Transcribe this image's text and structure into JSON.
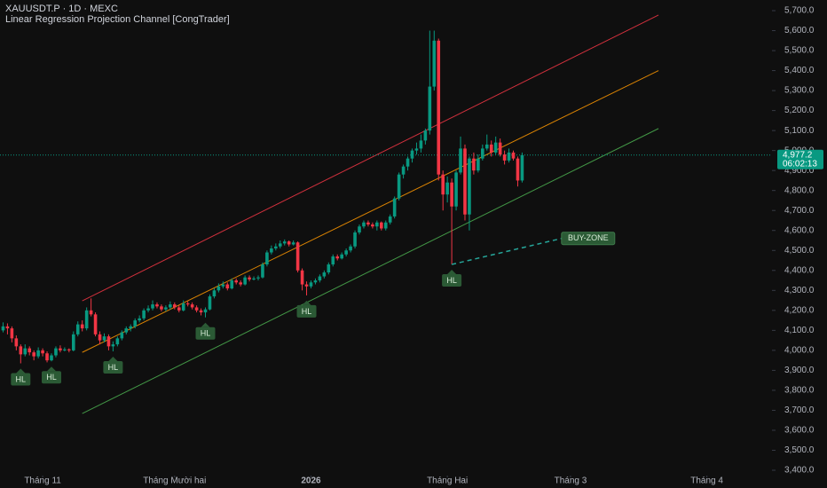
{
  "chart_data": {
    "type": "candlestick",
    "title": "XAUUSDT.P · 1D · MEXC",
    "subtitle": "Linear Regression Projection Channel [CongTrader]",
    "up_color": "#089981",
    "down_color": "#f23645",
    "xlim": [
      -9.7,
      165.8
    ],
    "ylim": [
      3400,
      5700
    ],
    "xticks": [
      {
        "value": 0,
        "label": "Tháng 11"
      },
      {
        "value": 30,
        "label": "Tháng Mười hai"
      },
      {
        "value": 61,
        "label": "2026"
      },
      {
        "value": 92,
        "label": "Tháng Hai"
      },
      {
        "value": 120,
        "label": "Tháng 3"
      },
      {
        "value": 151,
        "label": "Tháng 4"
      }
    ],
    "yticks": [
      {
        "value": 3400,
        "label": "3,400.0"
      },
      {
        "value": 3500,
        "label": "3,500.0"
      },
      {
        "value": 3600,
        "label": "3,600.0"
      },
      {
        "value": 3700,
        "label": "3,700.0"
      },
      {
        "value": 3800,
        "label": "3,800.0"
      },
      {
        "value": 3900,
        "label": "3,900.0"
      },
      {
        "value": 4000,
        "label": "4,000.0"
      },
      {
        "value": 4100,
        "label": "4,100.0"
      },
      {
        "value": 4200,
        "label": "4,200.0"
      },
      {
        "value": 4300,
        "label": "4,300.0"
      },
      {
        "value": 4400,
        "label": "4,400.0"
      },
      {
        "value": 4500,
        "label": "4,500.0"
      },
      {
        "value": 4600,
        "label": "4,600.0"
      },
      {
        "value": 4700,
        "label": "4,700.0"
      },
      {
        "value": 4800,
        "label": "4,800.0"
      },
      {
        "value": 4900,
        "label": "4,900.0"
      },
      {
        "value": 5000,
        "label": "5,000.0"
      },
      {
        "value": 5100,
        "label": "5,100.0"
      },
      {
        "value": 5200,
        "label": "5,200.0"
      },
      {
        "value": 5300,
        "label": "5,300.0"
      },
      {
        "value": 5400,
        "label": "5,400.0"
      },
      {
        "value": 5500,
        "label": "5,500.0"
      },
      {
        "value": 5600,
        "label": "5,600.0"
      },
      {
        "value": 5700,
        "label": "5,700.0"
      }
    ],
    "grid": false,
    "ohlc": [
      [
        -9,
        4100,
        4140,
        4090,
        4120
      ],
      [
        -8,
        4120,
        4135,
        4080,
        4110
      ],
      [
        -7,
        4110,
        4120,
        4040,
        4060
      ],
      [
        -6,
        4060,
        4075,
        4000,
        4020
      ],
      [
        -5,
        4020,
        4030,
        3935,
        3980
      ],
      [
        -4,
        3980,
        4030,
        3970,
        4010
      ],
      [
        -3,
        4010,
        4020,
        3975,
        3990
      ],
      [
        -2,
        3990,
        4000,
        3950,
        3970
      ],
      [
        -1,
        3970,
        4015,
        3960,
        4000
      ],
      [
        0,
        4000,
        4010,
        3970,
        3985
      ],
      [
        1,
        3985,
        3995,
        3940,
        3950
      ],
      [
        2,
        3950,
        3985,
        3945,
        3975
      ],
      [
        3,
        3975,
        4020,
        3965,
        4010
      ],
      [
        4,
        4010,
        4025,
        3990,
        4000
      ],
      [
        5,
        4000,
        4015,
        3995,
        4005
      ],
      [
        6,
        4005,
        4010,
        3990,
        4000
      ],
      [
        7,
        4000,
        4095,
        3995,
        4080
      ],
      [
        8,
        4080,
        4145,
        4070,
        4130
      ],
      [
        9,
        4130,
        4150,
        4095,
        4110
      ],
      [
        10,
        4110,
        4215,
        4100,
        4200
      ],
      [
        11,
        4200,
        4260,
        4170,
        4180
      ],
      [
        12,
        4180,
        4190,
        4070,
        4080
      ],
      [
        13,
        4080,
        4095,
        4030,
        4050
      ],
      [
        14,
        4050,
        4085,
        4040,
        4070
      ],
      [
        15,
        4070,
        4080,
        4000,
        4020
      ],
      [
        16,
        4020,
        4045,
        3995,
        4030
      ],
      [
        17,
        4030,
        4070,
        4020,
        4060
      ],
      [
        18,
        4060,
        4100,
        4050,
        4090
      ],
      [
        19,
        4090,
        4120,
        4080,
        4110
      ],
      [
        20,
        4110,
        4130,
        4095,
        4120
      ],
      [
        21,
        4120,
        4160,
        4110,
        4150
      ],
      [
        22,
        4150,
        4175,
        4140,
        4160
      ],
      [
        23,
        4160,
        4210,
        4150,
        4200
      ],
      [
        24,
        4200,
        4225,
        4190,
        4210
      ],
      [
        25,
        4210,
        4250,
        4200,
        4230
      ],
      [
        26,
        4230,
        4240,
        4210,
        4220
      ],
      [
        27,
        4220,
        4230,
        4195,
        4205
      ],
      [
        28,
        4205,
        4225,
        4195,
        4215
      ],
      [
        29,
        4215,
        4245,
        4205,
        4230
      ],
      [
        30,
        4230,
        4240,
        4205,
        4215
      ],
      [
        31,
        4215,
        4225,
        4190,
        4200
      ],
      [
        32,
        4200,
        4250,
        4195,
        4235
      ],
      [
        33,
        4235,
        4245,
        4220,
        4230
      ],
      [
        34,
        4230,
        4240,
        4205,
        4215
      ],
      [
        35,
        4215,
        4225,
        4190,
        4200
      ],
      [
        36,
        4200,
        4210,
        4175,
        4190
      ],
      [
        37,
        4190,
        4215,
        4165,
        4205
      ],
      [
        38,
        4205,
        4280,
        4200,
        4270
      ],
      [
        39,
        4270,
        4310,
        4260,
        4300
      ],
      [
        40,
        4300,
        4335,
        4290,
        4320
      ],
      [
        41,
        4320,
        4345,
        4310,
        4330
      ],
      [
        42,
        4330,
        4340,
        4300,
        4310
      ],
      [
        43,
        4310,
        4360,
        4305,
        4350
      ],
      [
        44,
        4350,
        4360,
        4330,
        4340
      ],
      [
        45,
        4340,
        4350,
        4320,
        4330
      ],
      [
        46,
        4330,
        4375,
        4325,
        4365
      ],
      [
        47,
        4365,
        4375,
        4345,
        4355
      ],
      [
        48,
        4355,
        4370,
        4350,
        4360
      ],
      [
        49,
        4360,
        4375,
        4350,
        4365
      ],
      [
        50,
        4365,
        4440,
        4360,
        4430
      ],
      [
        51,
        4430,
        4500,
        4420,
        4490
      ],
      [
        52,
        4490,
        4525,
        4480,
        4510
      ],
      [
        53,
        4510,
        4535,
        4500,
        4520
      ],
      [
        54,
        4520,
        4550,
        4510,
        4535
      ],
      [
        55,
        4535,
        4555,
        4525,
        4545
      ],
      [
        56,
        4545,
        4550,
        4520,
        4530
      ],
      [
        57,
        4530,
        4550,
        4525,
        4540
      ],
      [
        58,
        4540,
        4545,
        4390,
        4400
      ],
      [
        59,
        4400,
        4410,
        4300,
        4330
      ],
      [
        60,
        4330,
        4345,
        4275,
        4320
      ],
      [
        61,
        4320,
        4350,
        4310,
        4340
      ],
      [
        62,
        4340,
        4360,
        4330,
        4350
      ],
      [
        63,
        4350,
        4380,
        4340,
        4370
      ],
      [
        64,
        4370,
        4400,
        4360,
        4390
      ],
      [
        65,
        4390,
        4440,
        4380,
        4430
      ],
      [
        66,
        4430,
        4480,
        4420,
        4470
      ],
      [
        67,
        4470,
        4480,
        4450,
        4460
      ],
      [
        68,
        4460,
        4490,
        4455,
        4480
      ],
      [
        69,
        4480,
        4510,
        4470,
        4500
      ],
      [
        70,
        4500,
        4530,
        4490,
        4520
      ],
      [
        71,
        4520,
        4600,
        4510,
        4590
      ],
      [
        72,
        4590,
        4630,
        4580,
        4620
      ],
      [
        73,
        4620,
        4650,
        4610,
        4640
      ],
      [
        74,
        4640,
        4650,
        4620,
        4630
      ],
      [
        75,
        4630,
        4640,
        4610,
        4620
      ],
      [
        76,
        4620,
        4650,
        4600,
        4640
      ],
      [
        77,
        4640,
        4645,
        4600,
        4610
      ],
      [
        78,
        4610,
        4650,
        4600,
        4640
      ],
      [
        79,
        4640,
        4680,
        4630,
        4670
      ],
      [
        80,
        4670,
        4770,
        4660,
        4760
      ],
      [
        81,
        4760,
        4890,
        4750,
        4880
      ],
      [
        82,
        4880,
        4930,
        4860,
        4920
      ],
      [
        83,
        4920,
        4970,
        4900,
        4960
      ],
      [
        84,
        4960,
        5010,
        4940,
        5000
      ],
      [
        85,
        5000,
        5040,
        4980,
        5010
      ],
      [
        86,
        5010,
        5080,
        4990,
        5050
      ],
      [
        87,
        5050,
        5110,
        5030,
        5100
      ],
      [
        88,
        5100,
        5600,
        5080,
        5320
      ],
      [
        89,
        5320,
        5600,
        5300,
        5550
      ],
      [
        90,
        5550,
        5560,
        4850,
        4880
      ],
      [
        91,
        4880,
        4900,
        4700,
        4780
      ],
      [
        92,
        4780,
        4870,
        4740,
        4840
      ],
      [
        93,
        4840,
        4860,
        4430,
        4720
      ],
      [
        94,
        4720,
        4900,
        4700,
        4890
      ],
      [
        95,
        4890,
        5070,
        4880,
        5010
      ],
      [
        96,
        5010,
        5030,
        4650,
        4680
      ],
      [
        97,
        4680,
        4970,
        4600,
        4960
      ],
      [
        98,
        4960,
        4990,
        4880,
        4900
      ],
      [
        99,
        4900,
        4980,
        4890,
        4960
      ],
      [
        100,
        4960,
        5030,
        4950,
        5010
      ],
      [
        101,
        5010,
        5080,
        5000,
        5030
      ],
      [
        102,
        5030,
        5050,
        4970,
        4990
      ],
      [
        103,
        4990,
        5070,
        4980,
        5040
      ],
      [
        104,
        5040,
        5060,
        4970,
        4980
      ],
      [
        105,
        4980,
        5000,
        4930,
        4950
      ],
      [
        106,
        4950,
        5010,
        4940,
        4990
      ],
      [
        107,
        4990,
        5000,
        4950,
        4960
      ],
      [
        108,
        4960,
        4970,
        4820,
        4850
      ],
      [
        109,
        4850,
        4990,
        4840,
        4977.2
      ]
    ],
    "channel": [
      {
        "color": "#f23645",
        "x": [
          9,
          140
        ],
        "y": [
          4248,
          5678
        ]
      },
      {
        "color": "#ff9800",
        "x": [
          9,
          140
        ],
        "y": [
          3990,
          5400
        ]
      },
      {
        "color": "#4caf50",
        "x": [
          9,
          140
        ],
        "y": [
          3684,
          5110
        ]
      }
    ],
    "annotations": [
      {
        "text": "HL",
        "x": -5,
        "y": 3935
      },
      {
        "text": "HL",
        "x": 2,
        "y": 3945
      },
      {
        "text": "HL",
        "x": 16,
        "y": 3995
      },
      {
        "text": "HL",
        "x": 37,
        "y": 4165
      },
      {
        "text": "HL",
        "x": 60,
        "y": 4275
      },
      {
        "text": "HL",
        "x": 93,
        "y": 4430
      }
    ],
    "buy_zone": {
      "text": "BUY-ZONE",
      "x": 124,
      "y": 4560
    },
    "last_price": {
      "value": 4977.2,
      "label": "4,977.2",
      "countdown": "06:02:13"
    }
  }
}
